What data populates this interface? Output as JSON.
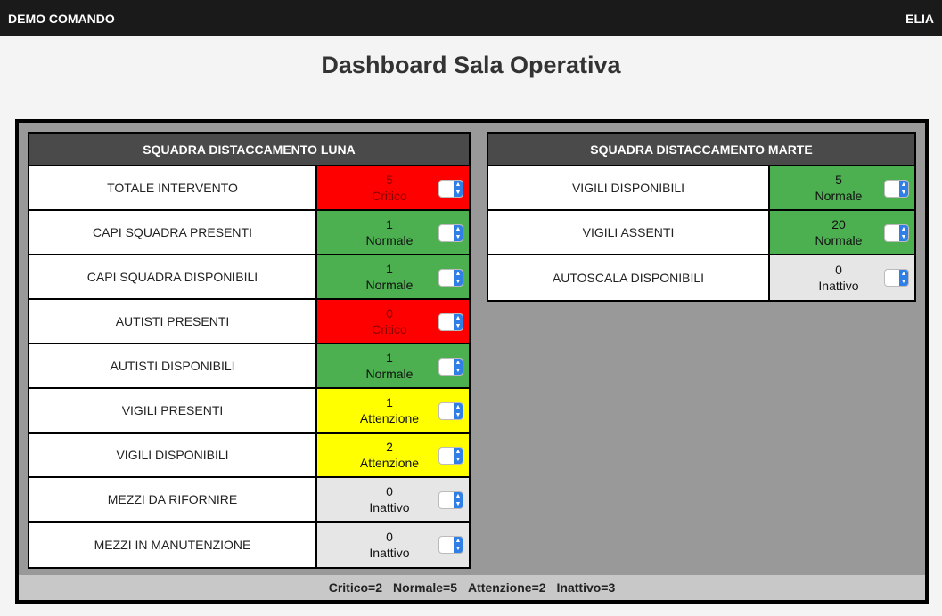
{
  "topbar": {
    "brand": "DEMO COMANDO",
    "user": "ELIA"
  },
  "page": {
    "title": "Dashboard Sala Operativa"
  },
  "panels": [
    {
      "title": "SQUADRA DISTACCAMENTO LUNA",
      "rows": [
        {
          "label": "TOTALE INTERVENTO",
          "value": "5",
          "status": "Critico"
        },
        {
          "label": "CAPI SQUADRA PRESENTI",
          "value": "1",
          "status": "Normale"
        },
        {
          "label": "CAPI SQUADRA DISPONIBILI",
          "value": "1",
          "status": "Normale"
        },
        {
          "label": "AUTISTI PRESENTI",
          "value": "0",
          "status": "Critico"
        },
        {
          "label": "AUTISTI DISPONIBILI",
          "value": "1",
          "status": "Normale"
        },
        {
          "label": "VIGILI PRESENTI",
          "value": "1",
          "status": "Attenzione"
        },
        {
          "label": "VIGILI DISPONIBILI",
          "value": "2",
          "status": "Attenzione"
        },
        {
          "label": "MEZZI DA RIFORNIRE",
          "value": "0",
          "status": "Inattivo"
        },
        {
          "label": "MEZZI IN MANUTENZIONE",
          "value": "0",
          "status": "Inattivo"
        }
      ]
    },
    {
      "title": "SQUADRA DISTACCAMENTO MARTE",
      "rows": [
        {
          "label": "VIGILI DISPONIBILI",
          "value": "5",
          "status": "Normale"
        },
        {
          "label": "VIGILI ASSENTI",
          "value": "20",
          "status": "Normale"
        },
        {
          "label": "AUTOSCALA DISPONIBILI",
          "value": "0",
          "status": "Inattivo"
        }
      ]
    }
  ],
  "summary": {
    "critico": "Critico=2",
    "normale": "Normale=5",
    "attenzione": "Attenzione=2",
    "inattivo": "Inattivo=3"
  },
  "colors": {
    "critico": "#ff0000",
    "normale": "#4caf50",
    "attenzione": "#ffff00",
    "inattivo": "#e6e6e6",
    "header": "#4a4a4a",
    "topbar": "#1a1a1a"
  },
  "icons": {
    "status_select": "select-updown-icon"
  }
}
